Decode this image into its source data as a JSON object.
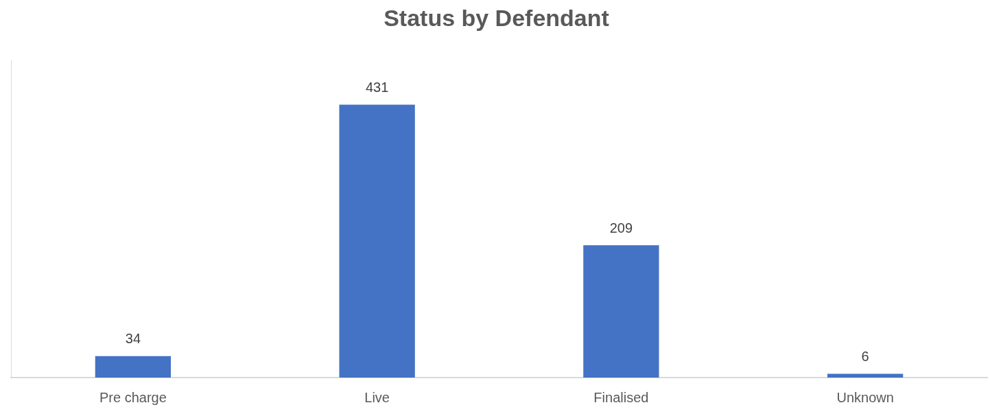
{
  "chart_data": {
    "type": "bar",
    "title": "Status by Defendant",
    "categories": [
      "Pre charge",
      "Live",
      "Finalised",
      "Unknown"
    ],
    "values": [
      34,
      431,
      209,
      6
    ],
    "color": "#4472c4",
    "ylim": [
      0,
      500
    ],
    "grid": false,
    "data_labels": true,
    "tick_labels": "x"
  }
}
